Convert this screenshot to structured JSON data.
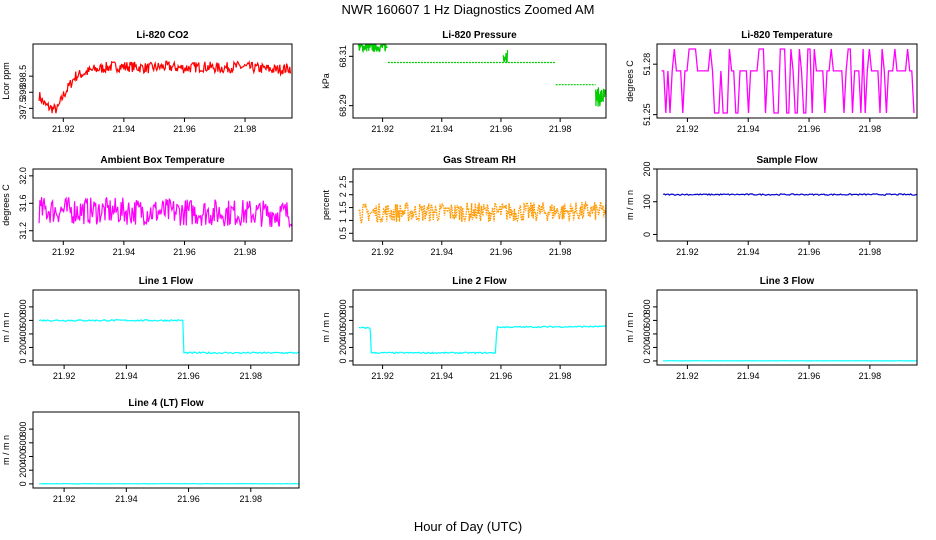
{
  "figure": {
    "title": "NWR  160607  1 Hz Diagnostics Zoomed AM",
    "xlabel": "Hour of Day (UTC)"
  },
  "chart_data": [
    {
      "type": "line",
      "title": "Li-820 CO2",
      "ylabel": "Lcor ppm",
      "color": "#ff0000",
      "xlim": [
        21.91,
        21.9955
      ],
      "ylim": [
        397.2,
        399.5
      ],
      "xticks": [
        21.92,
        21.94,
        21.96,
        21.98
      ],
      "yticks": [
        397.5,
        398.0,
        398.5
      ],
      "yticklabels": [
        "397.5",
        "398",
        "398.5"
      ],
      "x": [
        21.912,
        21.914,
        21.916,
        21.918,
        21.92,
        21.924,
        21.93,
        21.936,
        21.942,
        21.948,
        21.954,
        21.96,
        21.966,
        21.972,
        21.978,
        21.984,
        21.99,
        21.995
      ],
      "y": [
        397.9,
        397.6,
        397.5,
        397.45,
        397.9,
        398.5,
        398.7,
        398.8,
        398.8,
        398.75,
        398.8,
        398.75,
        398.8,
        398.75,
        398.8,
        398.75,
        398.7,
        398.75
      ],
      "noise": 0.17,
      "ymin": 397.35,
      "ymax": 399.35,
      "n": 330,
      "style": "line"
    },
    {
      "type": "line",
      "title": "Li-820 Pressure",
      "ylabel": "kPa",
      "color": "#00cc00",
      "xlim": [
        21.91,
        21.9955
      ],
      "ylim": [
        68.285,
        68.315
      ],
      "xticks": [
        21.92,
        21.94,
        21.96,
        21.98
      ],
      "yticks": [
        68.29,
        68.31
      ],
      "yticklabels": [
        "68.29",
        "68.31"
      ],
      "segments": [
        {
          "x0": 21.9118,
          "x1": 21.9215,
          "v": 68.3138,
          "noise": 0.002,
          "dense": true
        },
        {
          "x0": 21.9218,
          "x1": 21.9785,
          "v": 68.3075,
          "noise": 0,
          "dense": false
        },
        {
          "x0": 21.9608,
          "x1": 21.9622,
          "v": 68.3105,
          "noise": 0.003,
          "dense": true
        },
        {
          "x0": 21.9785,
          "x1": 21.992,
          "v": 68.2985,
          "noise": 0,
          "dense": false
        },
        {
          "x0": 21.992,
          "x1": 21.9955,
          "v": 68.2935,
          "noise": 0.004,
          "dense": true
        }
      ],
      "style": "steps"
    },
    {
      "type": "line",
      "title": "Li-820 Temperature",
      "ylabel": "degrees C",
      "color": "#ff00ff",
      "xlim": [
        21.91,
        21.9955
      ],
      "ylim": [
        51.248,
        51.292
      ],
      "xticks": [
        21.92,
        21.94,
        21.96,
        21.98
      ],
      "yticks": [
        51.25,
        51.28
      ],
      "yticklabels": [
        "51.25",
        "51.28"
      ],
      "base": 51.276,
      "high": 51.289,
      "low": 51.251,
      "n": 120,
      "style": "spikes"
    },
    {
      "type": "line",
      "title": "Ambient Box Temperature",
      "ylabel": "degrees C",
      "color": "#ff00ff",
      "xlim": [
        21.91,
        21.9955
      ],
      "ylim": [
        31.05,
        32.1
      ],
      "xticks": [
        21.92,
        21.94,
        21.96,
        21.98
      ],
      "yticks": [
        31.2,
        31.6,
        32.0
      ],
      "yticklabels": [
        "31.2",
        "31.6",
        "32.0"
      ],
      "x": [
        21.912,
        21.9955
      ],
      "y": [
        31.5,
        31.45
      ],
      "noise": 0.2,
      "ymin": 31.1,
      "ymax": 32.05,
      "n": 300,
      "style": "line"
    },
    {
      "type": "line",
      "title": "Gas Stream RH",
      "ylabel": "percent",
      "color": "#ff9900",
      "xlim": [
        21.91,
        21.9955
      ],
      "ylim": [
        0.2,
        3.0
      ],
      "xticks": [
        21.92,
        21.94,
        21.96,
        21.98
      ],
      "yticks": [
        0.5,
        1.0,
        1.5,
        2.0,
        2.5
      ],
      "yticklabels": [
        "0.5",
        "1",
        "1.5",
        "2",
        "2.5"
      ],
      "x": [
        21.912,
        21.9955
      ],
      "y": [
        1.3,
        1.35
      ],
      "noise": 0.38,
      "ymin": 0.3,
      "ymax": 2.7,
      "n": 330,
      "style": "dotted"
    },
    {
      "type": "line",
      "title": "Sample Flow",
      "ylabel": "m / m n",
      "color": "#0000cc",
      "xlim": [
        21.91,
        21.9955
      ],
      "ylim": [
        -20,
        200
      ],
      "xticks": [
        21.92,
        21.94,
        21.96,
        21.98
      ],
      "yticks": [
        0,
        100,
        200
      ],
      "yticklabels": [
        "0",
        "100",
        "200"
      ],
      "x": [
        21.912,
        21.9955
      ],
      "y": [
        122,
        122
      ],
      "noise": 2,
      "n": 200,
      "style": "line"
    },
    {
      "type": "line",
      "title": "Line 1 Flow",
      "ylabel": "m / m n",
      "color": "#00ffff",
      "xlim": [
        21.91,
        21.9955
      ],
      "ylim": [
        -60,
        1050
      ],
      "xticks": [
        21.92,
        21.94,
        21.96,
        21.98
      ],
      "yticks": [
        0,
        200,
        400,
        600,
        800
      ],
      "yticklabels": [
        "0",
        "200",
        "400",
        "600",
        "800"
      ],
      "x": [
        21.912,
        21.9582,
        21.9585,
        21.9955
      ],
      "y": [
        600,
        600,
        120,
        120
      ],
      "noise": 12,
      "n": 220,
      "style": "line"
    },
    {
      "type": "line",
      "title": "Line 2 Flow",
      "ylabel": "m / m n",
      "color": "#00ffff",
      "xlim": [
        21.91,
        21.9955
      ],
      "ylim": [
        -60,
        1050
      ],
      "xticks": [
        21.92,
        21.94,
        21.96,
        21.98
      ],
      "yticks": [
        0,
        200,
        400,
        600,
        800
      ],
      "yticklabels": [
        "0",
        "200",
        "400",
        "600",
        "800"
      ],
      "x": [
        21.912,
        21.9158,
        21.9162,
        21.9582,
        21.9586,
        21.9955
      ],
      "y": [
        490,
        490,
        120,
        120,
        500,
        510
      ],
      "noise": 10,
      "n": 220,
      "style": "line"
    },
    {
      "type": "line",
      "title": "Line 3 Flow",
      "ylabel": "m / m n",
      "color": "#00ffff",
      "xlim": [
        21.91,
        21.9955
      ],
      "ylim": [
        -60,
        1050
      ],
      "xticks": [
        21.92,
        21.94,
        21.96,
        21.98
      ],
      "yticks": [
        0,
        200,
        400,
        600,
        800
      ],
      "yticklabels": [
        "0",
        "200",
        "400",
        "600",
        "800"
      ],
      "x": [
        21.912,
        21.9955
      ],
      "y": [
        2,
        2
      ],
      "noise": 2,
      "n": 150,
      "style": "line"
    },
    {
      "type": "line",
      "title": "Line 4 (LT) Flow",
      "ylabel": "m / m n",
      "color": "#00ffff",
      "xlim": [
        21.91,
        21.9955
      ],
      "ylim": [
        -60,
        1050
      ],
      "xticks": [
        21.92,
        21.94,
        21.96,
        21.98
      ],
      "yticks": [
        0,
        200,
        400,
        600,
        800
      ],
      "yticklabels": [
        "0",
        "200",
        "400",
        "600",
        "800"
      ],
      "x": [
        21.912,
        21.9955
      ],
      "y": [
        2,
        2
      ],
      "noise": 2,
      "n": 150,
      "style": "line"
    }
  ]
}
